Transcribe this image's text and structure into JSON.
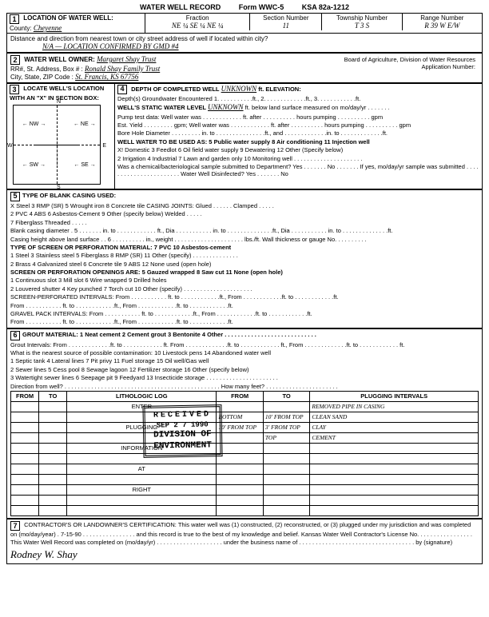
{
  "header": {
    "title": "WATER WELL RECORD",
    "form": "Form WWC-5",
    "ksa": "KSA 82a-1212"
  },
  "s1": {
    "label": "LOCATION OF WATER WELL:",
    "county_label": "County:",
    "county_val": "Cheyenne",
    "fraction": "Fraction",
    "frac_val": "NE  ¼   SE  ¼   NE  ¼",
    "section_label": "Section Number",
    "section_val": "11",
    "township_label": "Township Number",
    "township_val": "T   3   S",
    "range_label": "Range Number",
    "range_val": "R  39 W   E/W",
    "distdir": "Distance and direction from nearest town or city street address of well if located within city?",
    "distdir_val": "N/A — LOCATION CONFIRMED BY GMD #4"
  },
  "s2": {
    "label": "WATER WELL OWNER:",
    "owner": "Margaret Shay Trust",
    "addr_label": "RR#, St. Address, Box # :",
    "addr_val": "Ronald Shay Family Trust",
    "csz_label": "City, State, ZIP Code :",
    "csz_val": "St. Francis, KS   67756",
    "board": "Board of Agriculture, Division of Water Resources",
    "appno": "Application Number:"
  },
  "s3": {
    "label": "LOCATE WELL'S LOCATION WITH AN \"X\" IN SECTION BOX:"
  },
  "s4": {
    "depth": "DEPTH OF COMPLETED WELL",
    "depth_val": "UNKNOWN",
    "elev": "ft. ELEVATION:",
    "lines": {
      "l1": "Depth(s) Groundwater Encountered   1. . . . . . . . . . .ft., 2. . . . . . . . . . . . .ft., 3. . . . . . . . . . . .ft.",
      "l2a": "WELL'S STATIC WATER LEVEL",
      "l2b": "ft. below land surface measured on mo/day/yr . . . . . . .",
      "l3": "Pump test data:  Well water was . . . . . . . . . . . . ft. after . . . . . . . . . . hours pumping . . . . . . . . . . gpm",
      "l4": "Est. Yield . . . . . . . . . gpm;  Well water was . . . . . . . . . . . . ft. after . . . . . . . . . . hours pumping . . . . . . . . . . gpm",
      "l5": "Bore Hole Diameter . . . . . . . . . in. to . . . . . . . . . . . . . . .ft., and . . . . . . . . . . . . .in. to . . . . . . . . . . . . .ft.",
      "l6": "WELL WATER TO BE USED AS:       5 Public water supply       8 Air conditioning       11 Injection well",
      "l7": "X! Domestic       3 Feedlot       6 Oil field water supply       9 Dewatering       12 Other (Specify below)",
      "l8": "2 Irrigation       4 Industrial       7 Lawn and garden only       10 Monitoring well . . . . . . . . . . . . . . . . . . . . .",
      "l9": "Was a chemical/bacteriological sample submitted to Department? Yes . . . . . . . No . . . . . . . If yes, mo/day/yr sample was submitted . . . . . . . . . . . . . . . . . . . . . . . Water Well Disinfected?  Yes . . . . . . .  No"
    }
  },
  "s5": {
    "label": "TYPE OF BLANK CASING USED:",
    "l1": "X Steel        3 RMP (SR)        5 Wrought iron        8 Concrete tile        CASING JOINTS: Glued . . . . . . Clamped . . . . .",
    "l2": "2 PVC        4 ABS        6 Asbestos-Cement        9 Other (specify below)                Welded . . . . .",
    "l3": "                                  7 Fiberglass                                                                                    Threaded . . . . .",
    "l4": "Blank casing diameter . 5 . . . . . . . in. to . . . . . . . . . . . . ft., Dia . . . . . . . . . . . in. to . . . . . . . . . . . . . .ft., Dia . . . . . . . . . . . in. to . . . . . . . . . . . . . .ft.",
    "l5": "Casing height above land surface . . 6 . . . . . . . . . . in., weight . . . . . . . . . . . . . . . . . . . . . lbs./ft. Wall thickness or gauge No. . . . . . . . . .",
    "l6": "TYPE OF SCREEN OR PERFORATION MATERIAL:                    7 PVC                10 Asbestos-cement",
    "l7": "1 Steel        3 Stainless steel        5 Fiberglass        8 RMP (SR)        11 Other (specify) . . . . . . . . . . . . . .",
    "l8": "2 Brass        4 Galvanized steel        6 Concrete tile        9 ABS        12 None used (open hole)",
    "l9": "SCREEN OR PERFORATION OPENINGS ARE:        5 Gauzed wrapped        8 Saw cut        11 None (open hole)",
    "l10": "1 Continuous slot        3 Mill slot        6 Wire wrapped        9 Drilled holes",
    "l11": "2 Louvered shutter        4 Key punched        7 Torch cut        10 Other (specify) . . . . . . . . . . . . . . . . . . . . .",
    "l12": "SCREEN-PERFORATED INTERVALS:    From . . . . . . . . . . . ft. to . . . . . . . . . . . .ft., From . . . . . . . . . . . .ft. to . . . . . . . . . . . .ft.",
    "l13": "                                                      From . . . . . . . . . . . ft. to . . . . . . . . . . . .ft., From . . . . . . . . . . . .ft. to . . . . . . . . . . . .ft.",
    "l14": "GRAVEL PACK INTERVALS:    From . . . . . . . . . . . ft. to . . . . . . . . . . . .ft., From . . . . . . . . . . . .ft. to . . . . . . . . . . . .ft.",
    "l15": "                                                      From . . . . . . . . . . . ft. to . . . . . . . . . . . .ft., From . . . . . . . . . . . .ft. to . . . . . . . . . . . .ft."
  },
  "s6": {
    "label": "GROUT MATERIAL:    1 Neat cement        2 Cement grout        3 Bentonite        4 Other . . . . . . . . . . . . . . . . . . . . . . . . . . . .",
    "l1": "Grout Intervals:   From . . . . . . . . . . . . .ft. to . . . . . . . . . . . . ft.   From . . . . . . . . . . . . .ft. to . . . . . . . . . . . . ft.,   From . . . . . . . . . . . . .ft. to . . . . . . . . . . . . ft.",
    "l2": "What is the nearest source of possible contamination:                    10 Livestock pens        14 Abandoned water well",
    "l3": "1 Septic tank        4 Lateral lines        7 Pit privy        11 Fuel storage        15 Oil well/Gas well",
    "l4": "2 Sewer lines        5 Cess pool        8 Sewage lagoon        12 Fertilizer storage        16 Other (specify below)",
    "l5": "3 Watertight sewer lines  6 Seepage pit        9 Feedyard        13 Insecticide storage . . . . . . . . . . . . . . . . . . . . . .",
    "l6": "Direction from well? . . . . . . . . . . . . . . . . . . . . . . . . . . . . . . . . . . . . . . . . . . . . . . . How many feet? . . . . . . . . . . . . . . . . . . . . . .",
    "table_headers": {
      "from1": "FROM",
      "to1": "TO",
      "lith": "LITHOLOGIC LOG",
      "from2": "FROM",
      "to2": "TO",
      "plug": "PLUGGING INTERVALS"
    },
    "rows": [
      {
        "lith": "ENTER",
        "from2": "",
        "to2": "",
        "plug": "REMOVED PIPE IN CASING"
      },
      {
        "lith": "",
        "from2": "BOTTOM",
        "to2": "10' FROM TOP",
        "plug": "CLEAN SAND"
      },
      {
        "lith": "PLUGGING",
        "from2": "10' FROM TOP",
        "to2": "3' FROM TOP",
        "plug": "CLAY"
      },
      {
        "lith": "",
        "from2": "",
        "to2": "TOP",
        "plug": "CEMENT"
      },
      {
        "lith": "INFORMATION"
      },
      {
        "lith": ""
      },
      {
        "lith": "AT"
      },
      {
        "lith": ""
      },
      {
        "lith": "RIGHT"
      },
      {
        "lith": ""
      },
      {
        "lith": ""
      }
    ],
    "stamp": {
      "l1": "RECEIVED",
      "l2": "SEP 2 7 1990",
      "l3": "DIVISION OF",
      "l4": "ENVIRONMENT"
    }
  },
  "s7": {
    "text": "CONTRACTOR'S OR LANDOWNER'S CERTIFICATION: This water well was (1) constructed, (2) reconstructed, or (3) plugged under my jurisdiction and was completed on (mo/day/year) . 7-15-90 . . . . . . . . . . . . . . . . and this record is true to the best of my knowledge and belief. Kansas Water Well Contractor's License No. . . . . . . . . . . . . . . . . This Water Well Record was completed on (mo/day/yr) . . . . . . . . . . . . . . . . . . . . under the business name of . . . . . . . . . . . . . . . . . . . . . . . . . . . . . . . . . . . by (signature)",
    "sig": "Rodney W. Shay"
  }
}
